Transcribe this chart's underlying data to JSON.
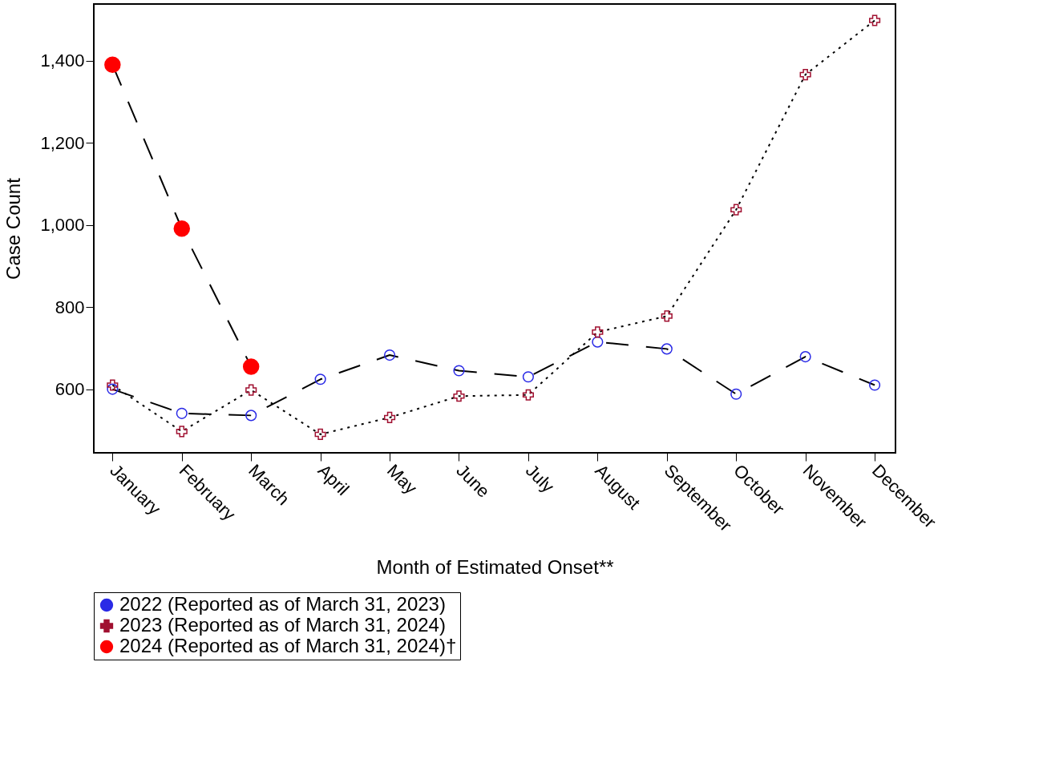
{
  "chart_data": {
    "type": "line",
    "xlabel": "Month of Estimated Onset**",
    "ylabel": "Case Count",
    "categories": [
      "January",
      "February",
      "March",
      "April",
      "May",
      "June",
      "July",
      "August",
      "September",
      "October",
      "November",
      "December"
    ],
    "ylim": [
      445,
      1538
    ],
    "yticks": [
      600,
      800,
      {
        "value": 1000,
        "label": "1,000"
      },
      {
        "value": 1200,
        "label": "1,200"
      },
      {
        "value": 1400,
        "label": "1,400"
      }
    ],
    "grid": false,
    "legend": "bottom",
    "series": [
      {
        "name": "2022 (Reported as of March 31, 2023)",
        "color": "#2a2ae6",
        "marker": "circle",
        "line_style": "dashed",
        "values": [
          600,
          541,
          536,
          624,
          683,
          645,
          630,
          715,
          698,
          588,
          679,
          610
        ]
      },
      {
        "name": "2023 (Reported as of March 31, 2024)",
        "color": "#a01030",
        "marker": "cross",
        "line_style": "dotted",
        "values": [
          610,
          497,
          598,
          490,
          531,
          583,
          586,
          739,
          778,
          1037,
          1366,
          1498
        ]
      },
      {
        "name": "2024 (Reported as of March 31, 2024)†",
        "color": "#ff0000",
        "marker": "circle",
        "line_style": "dashed",
        "values": [
          1390,
          991,
          655,
          null,
          null,
          null,
          null,
          null,
          null,
          null,
          null,
          null
        ]
      }
    ]
  }
}
